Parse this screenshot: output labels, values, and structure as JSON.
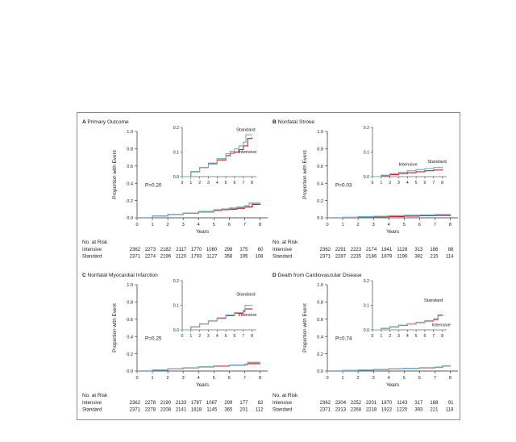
{
  "colors": {
    "intensive": "#c8231e",
    "standard": "#6faec4",
    "axis": "#222222"
  },
  "axis_common": {
    "ylabel": "Proportion with Event",
    "xlabel": "Years",
    "at_risk_header": "No. at Risk",
    "row_labels": [
      "Intensive",
      "Standard"
    ]
  },
  "chart_data": [
    {
      "type": "line",
      "letter": "A",
      "title": "Primary Outcome",
      "p_value": "P=0.20",
      "xlabel": "Years",
      "ylabel": "Proportion with Event",
      "xlim": [
        0,
        8.5
      ],
      "ylim": [
        0,
        1.0
      ],
      "x_ticks": [
        0,
        1,
        2,
        3,
        4,
        5,
        6,
        7,
        8
      ],
      "y_ticks": [
        "0.0",
        "0.2",
        "0.4",
        "0.6",
        "0.8",
        "1.0"
      ],
      "inset": {
        "ylim": [
          0,
          0.2
        ],
        "y_ticks": [
          "0.0",
          "0.1",
          "0.2"
        ],
        "labels": [
          {
            "text": "Standard",
            "x": 6.2,
            "y": 0.185
          },
          {
            "text": "Intensive",
            "x": 6.4,
            "y": 0.095
          }
        ]
      },
      "series": [
        {
          "name": "Intensive",
          "x": [
            0,
            1,
            2,
            3,
            4,
            5,
            5.5,
            6,
            6.5,
            7,
            7.5,
            8
          ],
          "y": [
            0,
            0.02,
            0.037,
            0.052,
            0.068,
            0.085,
            0.095,
            0.1,
            0.11,
            0.125,
            0.155,
            0.16
          ]
        },
        {
          "name": "Standard",
          "x": [
            0,
            1,
            2,
            3,
            4,
            5,
            5.5,
            6,
            6.5,
            7,
            7.3,
            8
          ],
          "y": [
            0,
            0.021,
            0.038,
            0.055,
            0.073,
            0.093,
            0.103,
            0.113,
            0.125,
            0.14,
            0.17,
            0.172
          ]
        }
      ],
      "at_risk": {
        "Intensive": [
          2362,
          2273,
          2182,
          2117,
          1770,
          1080,
          298,
          175,
          80
        ],
        "Standard": [
          2371,
          2274,
          2196,
          2120,
          1793,
          1127,
          358,
          195,
          108
        ]
      }
    },
    {
      "type": "line",
      "letter": "B",
      "title": "Nonfatal Stroke",
      "p_value": "P=0.03",
      "xlabel": "Years",
      "ylabel": "Proportion with Event",
      "xlim": [
        0,
        8.5
      ],
      "ylim": [
        0,
        1.0
      ],
      "x_ticks": [
        0,
        1,
        2,
        3,
        4,
        5,
        6,
        7,
        8
      ],
      "y_ticks": [
        "0.0",
        "0.2",
        "0.4",
        "0.6",
        "0.8",
        "1.0"
      ],
      "inset": {
        "ylim": [
          0,
          0.2
        ],
        "y_ticks": [
          "0.0",
          "0.1",
          "0.2"
        ],
        "labels": [
          {
            "text": "Intensive",
            "x": 3.0,
            "y": 0.045
          },
          {
            "text": "Standard",
            "x": 6.3,
            "y": 0.055
          }
        ]
      },
      "series": [
        {
          "name": "Intensive",
          "x": [
            0,
            1,
            2,
            3,
            4,
            5,
            6,
            7,
            8
          ],
          "y": [
            0,
            0.004,
            0.008,
            0.012,
            0.016,
            0.02,
            0.024,
            0.027,
            0.03
          ]
        },
        {
          "name": "Standard",
          "x": [
            0,
            1,
            2,
            3,
            4,
            5,
            6,
            7,
            8
          ],
          "y": [
            0,
            0.006,
            0.012,
            0.018,
            0.024,
            0.029,
            0.033,
            0.037,
            0.04
          ]
        }
      ],
      "at_risk": {
        "Intensive": [
          2362,
          2291,
          2223,
          2174,
          1841,
          1128,
          313,
          186,
          88
        ],
        "Standard": [
          2371,
          2287,
          2235,
          2186,
          1879,
          1196,
          382,
          215,
          114
        ]
      }
    },
    {
      "type": "line",
      "letter": "C",
      "title": "Nonfatal Myocardial Infarction",
      "p_value": "P=0.25",
      "xlabel": "Years",
      "ylabel": "Proportion with Event",
      "xlim": [
        0,
        8.5
      ],
      "ylim": [
        0,
        1.0
      ],
      "x_ticks": [
        0,
        1,
        2,
        3,
        4,
        5,
        6,
        7,
        8
      ],
      "y_ticks": [
        "0.0",
        "0.2",
        "0.4",
        "0.6",
        "0.8",
        "1.0"
      ],
      "inset": {
        "ylim": [
          0,
          0.2
        ],
        "y_ticks": [
          "0.0",
          "0.1",
          "0.2"
        ],
        "labels": [
          {
            "text": "Standard",
            "x": 6.2,
            "y": 0.14
          },
          {
            "text": "Intensive",
            "x": 6.4,
            "y": 0.055
          }
        ]
      },
      "series": [
        {
          "name": "Intensive",
          "x": [
            0,
            1,
            2,
            3,
            4,
            5,
            6,
            7,
            7.2,
            8
          ],
          "y": [
            0,
            0.012,
            0.024,
            0.036,
            0.047,
            0.058,
            0.068,
            0.075,
            0.085,
            0.087
          ]
        },
        {
          "name": "Standard",
          "x": [
            0,
            1,
            2,
            3,
            4,
            5,
            6,
            7,
            7.2,
            8
          ],
          "y": [
            0,
            0.012,
            0.025,
            0.037,
            0.049,
            0.061,
            0.07,
            0.08,
            0.1,
            0.102
          ]
        }
      ],
      "at_risk": {
        "Intensive": [
          2362,
          2278,
          2190,
          2133,
          1787,
          1087,
          299,
          177,
          82
        ],
        "Standard": [
          2371,
          2278,
          2208,
          2141,
          1818,
          1145,
          365,
          201,
          112
        ]
      }
    },
    {
      "type": "line",
      "letter": "D",
      "title": "Death from Cardiovascular Disease",
      "p_value": "P=0.74",
      "xlabel": "Years",
      "ylabel": "Proportion with Event",
      "xlim": [
        0,
        8.5
      ],
      "ylim": [
        0,
        1.0
      ],
      "x_ticks": [
        0,
        1,
        2,
        3,
        4,
        5,
        6,
        7,
        8
      ],
      "y_ticks": [
        "0.0",
        "0.2",
        "0.4",
        "0.6",
        "0.8",
        "1.0"
      ],
      "inset": {
        "ylim": [
          0,
          0.2
        ],
        "y_ticks": [
          "0.0",
          "0.1",
          "0.2"
        ],
        "labels": [
          {
            "text": "Standard",
            "x": 5.9,
            "y": 0.115
          },
          {
            "text": "Intensive",
            "x": 6.8,
            "y": 0.015
          }
        ]
      },
      "series": [
        {
          "name": "Intensive",
          "x": [
            0,
            1,
            2,
            3,
            4,
            5,
            6,
            7,
            7.5,
            8
          ],
          "y": [
            0,
            0.006,
            0.012,
            0.018,
            0.024,
            0.03,
            0.036,
            0.042,
            0.06,
            0.062
          ]
        },
        {
          "name": "Standard",
          "x": [
            0,
            1,
            2,
            3,
            4,
            5,
            6,
            7,
            7.5,
            8
          ],
          "y": [
            0,
            0.007,
            0.013,
            0.019,
            0.025,
            0.031,
            0.038,
            0.045,
            0.058,
            0.06
          ]
        }
      ],
      "at_risk": {
        "Intensive": [
          2362,
          2304,
          2252,
          2201,
          1870,
          1143,
          317,
          188,
          91
        ],
        "Standard": [
          2371,
          2313,
          2268,
          2218,
          1922,
          1220,
          393,
          221,
          118
        ]
      }
    }
  ]
}
